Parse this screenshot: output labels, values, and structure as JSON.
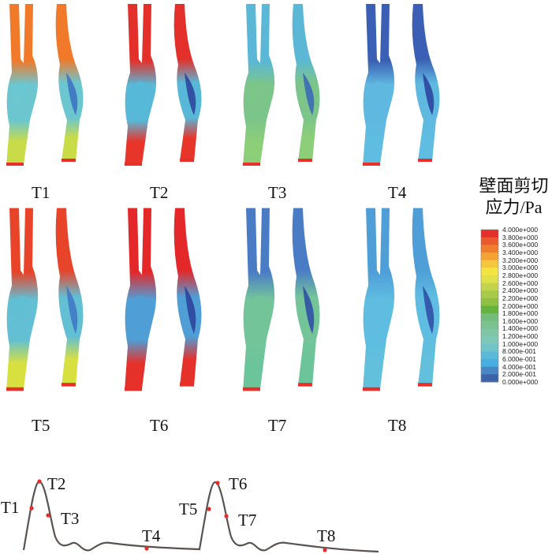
{
  "panels": [
    {
      "label": "T1",
      "top": "#f07a2a",
      "mid": "#6cc6d0",
      "bulge": "#3d6fc2",
      "bottom": "#c9dc48"
    },
    {
      "label": "T2",
      "top": "#e3302a",
      "mid": "#58b8d8",
      "bulge": "#2c3f9a",
      "bottom": "#e8352a"
    },
    {
      "label": "T3",
      "top": "#5ab7d6",
      "mid": "#7cc58a",
      "bulge": "#3b64b8",
      "bottom": "#8ccf78"
    },
    {
      "label": "T4",
      "top": "#3a5fb4",
      "mid": "#5fb8e0",
      "bulge": "#2a3e9a",
      "bottom": "#5ebde0"
    },
    {
      "label": "T5",
      "top": "#e8442a",
      "mid": "#62bfd4",
      "bulge": "#3d74c6",
      "bottom": "#d8e040"
    },
    {
      "label": "T6",
      "top": "#e4282a",
      "mid": "#4f9ed6",
      "bulge": "#2c3e9a",
      "bottom": "#e6302a"
    },
    {
      "label": "T7",
      "top": "#4a7cc6",
      "mid": "#74c49a",
      "bulge": "#2e4aa6",
      "bottom": "#6cc49a"
    },
    {
      "label": "T8",
      "top": "#4f9ed8",
      "mid": "#5ebde0",
      "bulge": "#2e4aa6",
      "bottom": "#62c0dc"
    }
  ],
  "legend": {
    "title_line1": "壁面剪切",
    "title_line2": "应力/Pa",
    "ticks": [
      "4.000e+000",
      "3.800e+000",
      "3.600e+000",
      "3.400e+000",
      "3.200e+000",
      "3.000e+000",
      "2.800e+000",
      "2.600e+000",
      "2.400e+000",
      "2.200e+000",
      "2.000e+000",
      "1.800e+000",
      "1.600e+000",
      "1.400e+000",
      "1.200e+000",
      "1.000e+000",
      "8.000e-001",
      "6.000e-001",
      "4.000e-001",
      "2.000e-001",
      "0.000e+000"
    ],
    "colors": [
      "#e2302a",
      "#ea5a2c",
      "#f07c2e",
      "#f4a236",
      "#f4c83c",
      "#f2e442",
      "#dfe04a",
      "#c3d44c",
      "#a8ca48",
      "#8ec042",
      "#66b23e",
      "#72bc7c",
      "#7cc290",
      "#80c6a4",
      "#7ec8b8",
      "#72c4c8",
      "#5ab8d8",
      "#46aee0",
      "#4886c4",
      "#3c62aa",
      "#34489a"
    ]
  },
  "waveform": {
    "labels": [
      "T1",
      "T2",
      "T3",
      "T4",
      "T5",
      "T6",
      "T7",
      "T8"
    ],
    "line_color": "#5a5250",
    "marker_color": "#e82a2a"
  }
}
